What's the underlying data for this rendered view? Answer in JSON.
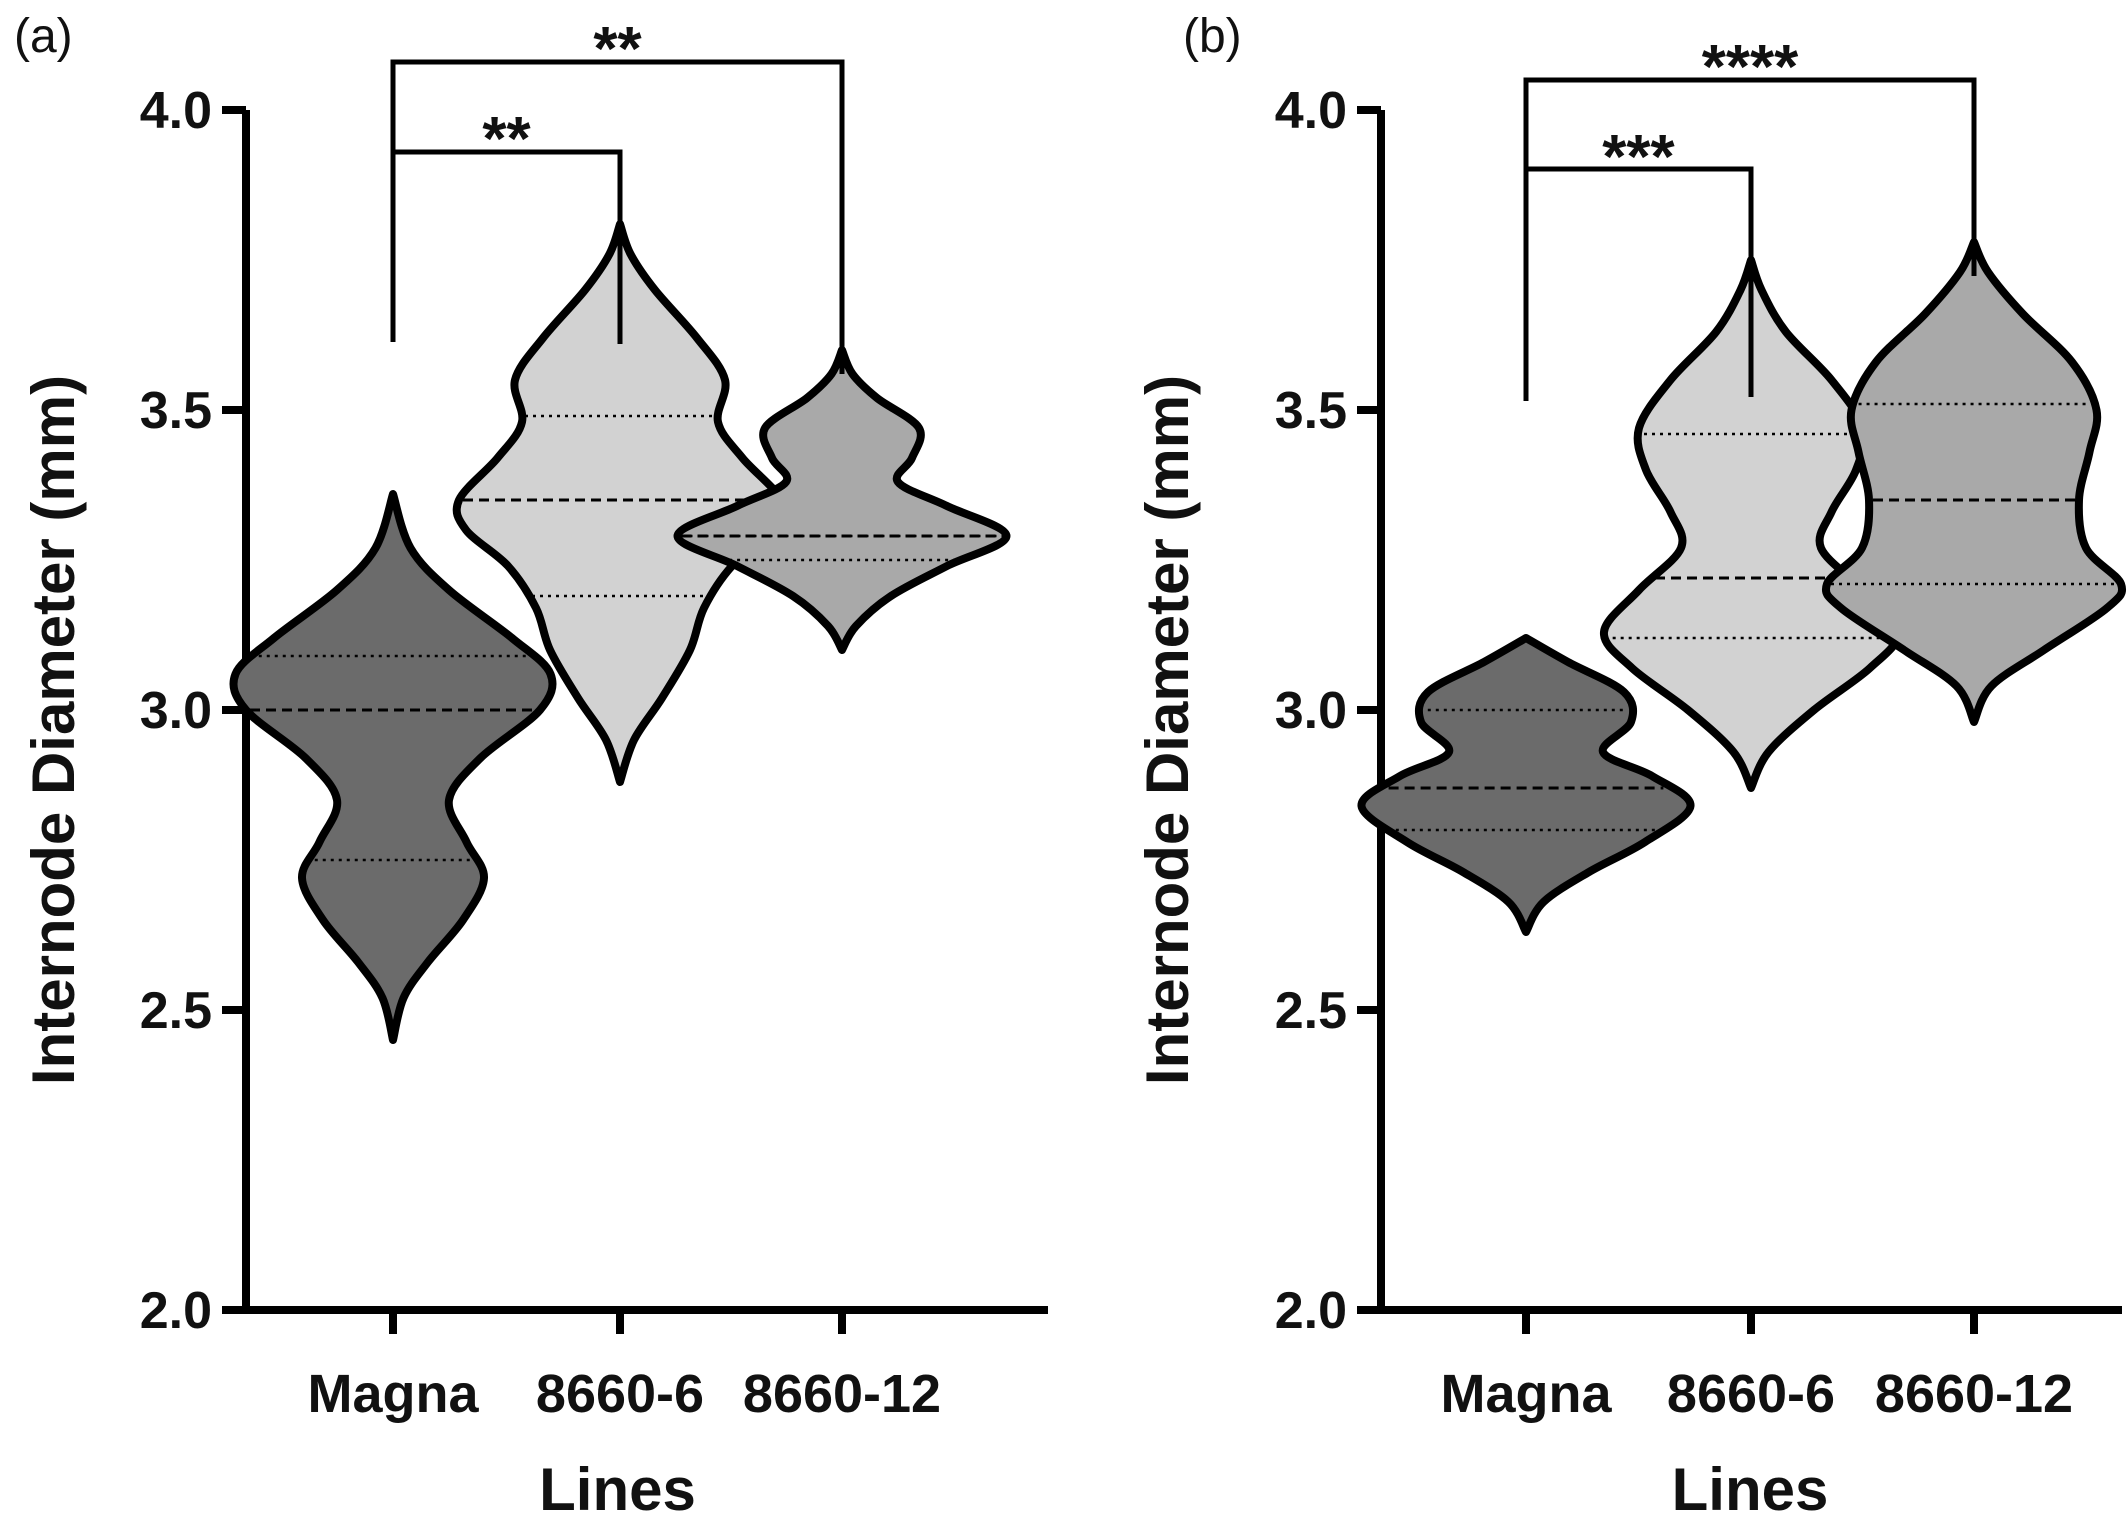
{
  "chart_data": [
    {
      "type": "violin",
      "panel_label": "(a)",
      "ylabel": "Internode Diameter (mm)",
      "xlabel": "Lines",
      "ylim": [
        2.0,
        4.0
      ],
      "yticks": [
        2.0,
        2.5,
        3.0,
        3.5,
        4.0
      ],
      "ytick_labels": [
        "2.0",
        "2.5",
        "3.0",
        "3.5",
        "4.0"
      ],
      "categories": [
        "Magna",
        "8660-6",
        "8660-12"
      ],
      "fill_colors": [
        "#6b6b6b",
        "#d2d2d2",
        "#a9a9a9"
      ],
      "violins": [
        {
          "category": "Magna",
          "median": 3.0,
          "q1": 2.75,
          "q3": 3.09,
          "density": [
            [
              2.45,
              0.0
            ],
            [
              2.52,
              0.03
            ],
            [
              2.58,
              0.1
            ],
            [
              2.65,
              0.2
            ],
            [
              2.72,
              0.26
            ],
            [
              2.78,
              0.21
            ],
            [
              2.85,
              0.16
            ],
            [
              2.92,
              0.25
            ],
            [
              3.0,
              0.42
            ],
            [
              3.06,
              0.45
            ],
            [
              3.12,
              0.34
            ],
            [
              3.2,
              0.16
            ],
            [
              3.27,
              0.05
            ],
            [
              3.36,
              0.0
            ]
          ]
        },
        {
          "category": "8660-6",
          "median": 3.35,
          "q1": 3.19,
          "q3": 3.49,
          "density": [
            [
              2.88,
              0.0
            ],
            [
              2.95,
              0.04
            ],
            [
              3.02,
              0.12
            ],
            [
              3.1,
              0.2
            ],
            [
              3.17,
              0.24
            ],
            [
              3.24,
              0.32
            ],
            [
              3.3,
              0.44
            ],
            [
              3.35,
              0.46
            ],
            [
              3.42,
              0.35
            ],
            [
              3.48,
              0.28
            ],
            [
              3.55,
              0.3
            ],
            [
              3.62,
              0.22
            ],
            [
              3.7,
              0.1
            ],
            [
              3.76,
              0.03
            ],
            [
              3.81,
              0.0
            ]
          ]
        },
        {
          "category": "8660-12",
          "median": 3.29,
          "q1": 3.25,
          "q3": 3.29,
          "density": [
            [
              3.1,
              0.0
            ],
            [
              3.14,
              0.04
            ],
            [
              3.19,
              0.14
            ],
            [
              3.24,
              0.3
            ],
            [
              3.29,
              0.47
            ],
            [
              3.34,
              0.3
            ],
            [
              3.38,
              0.16
            ],
            [
              3.42,
              0.2
            ],
            [
              3.47,
              0.22
            ],
            [
              3.52,
              0.1
            ],
            [
              3.56,
              0.03
            ],
            [
              3.6,
              0.0
            ]
          ]
        }
      ],
      "comparisons": [
        {
          "from": "Magna",
          "to": "8660-6",
          "label": "**"
        },
        {
          "from": "Magna",
          "to": "8660-12",
          "label": "**"
        }
      ]
    },
    {
      "type": "violin",
      "panel_label": "(b)",
      "ylabel": "Internode Diameter (mm)",
      "xlabel": "Lines",
      "ylim": [
        2.0,
        4.0
      ],
      "yticks": [
        2.0,
        2.5,
        3.0,
        3.5,
        4.0
      ],
      "ytick_labels": [
        "2.0",
        "2.5",
        "3.0",
        "3.5",
        "4.0"
      ],
      "categories": [
        "Magna",
        "8660-6",
        "8660-12"
      ],
      "fill_colors": [
        "#6b6b6b",
        "#d2d2d2",
        "#a9a9a9"
      ],
      "violins": [
        {
          "category": "Magna",
          "median": 2.87,
          "q1": 2.8,
          "q3": 3.0,
          "density": [
            [
              2.63,
              0.0
            ],
            [
              2.68,
              0.05
            ],
            [
              2.73,
              0.18
            ],
            [
              2.78,
              0.34
            ],
            [
              2.84,
              0.47
            ],
            [
              2.89,
              0.36
            ],
            [
              2.93,
              0.22
            ],
            [
              2.98,
              0.3
            ],
            [
              3.03,
              0.28
            ],
            [
              3.08,
              0.12
            ],
            [
              3.12,
              0.0
            ]
          ]
        },
        {
          "category": "8660-6",
          "median": 3.22,
          "q1": 3.12,
          "q3": 3.46,
          "density": [
            [
              2.87,
              0.0
            ],
            [
              2.93,
              0.05
            ],
            [
              3.0,
              0.18
            ],
            [
              3.07,
              0.34
            ],
            [
              3.13,
              0.42
            ],
            [
              3.2,
              0.32
            ],
            [
              3.27,
              0.2
            ],
            [
              3.33,
              0.23
            ],
            [
              3.4,
              0.3
            ],
            [
              3.47,
              0.32
            ],
            [
              3.55,
              0.23
            ],
            [
              3.63,
              0.1
            ],
            [
              3.7,
              0.03
            ],
            [
              3.75,
              0.0
            ]
          ]
        },
        {
          "category": "8660-12",
          "median": 3.35,
          "q1": 3.21,
          "q3": 3.51,
          "density": [
            [
              2.98,
              0.0
            ],
            [
              3.04,
              0.05
            ],
            [
              3.1,
              0.2
            ],
            [
              3.17,
              0.38
            ],
            [
              3.21,
              0.42
            ],
            [
              3.27,
              0.32
            ],
            [
              3.35,
              0.3
            ],
            [
              3.43,
              0.33
            ],
            [
              3.5,
              0.35
            ],
            [
              3.58,
              0.28
            ],
            [
              3.66,
              0.14
            ],
            [
              3.73,
              0.04
            ],
            [
              3.78,
              0.0
            ]
          ]
        }
      ],
      "comparisons": [
        {
          "from": "Magna",
          "to": "8660-6",
          "label": "***"
        },
        {
          "from": "Magna",
          "to": "8660-12",
          "label": "****"
        }
      ]
    }
  ]
}
